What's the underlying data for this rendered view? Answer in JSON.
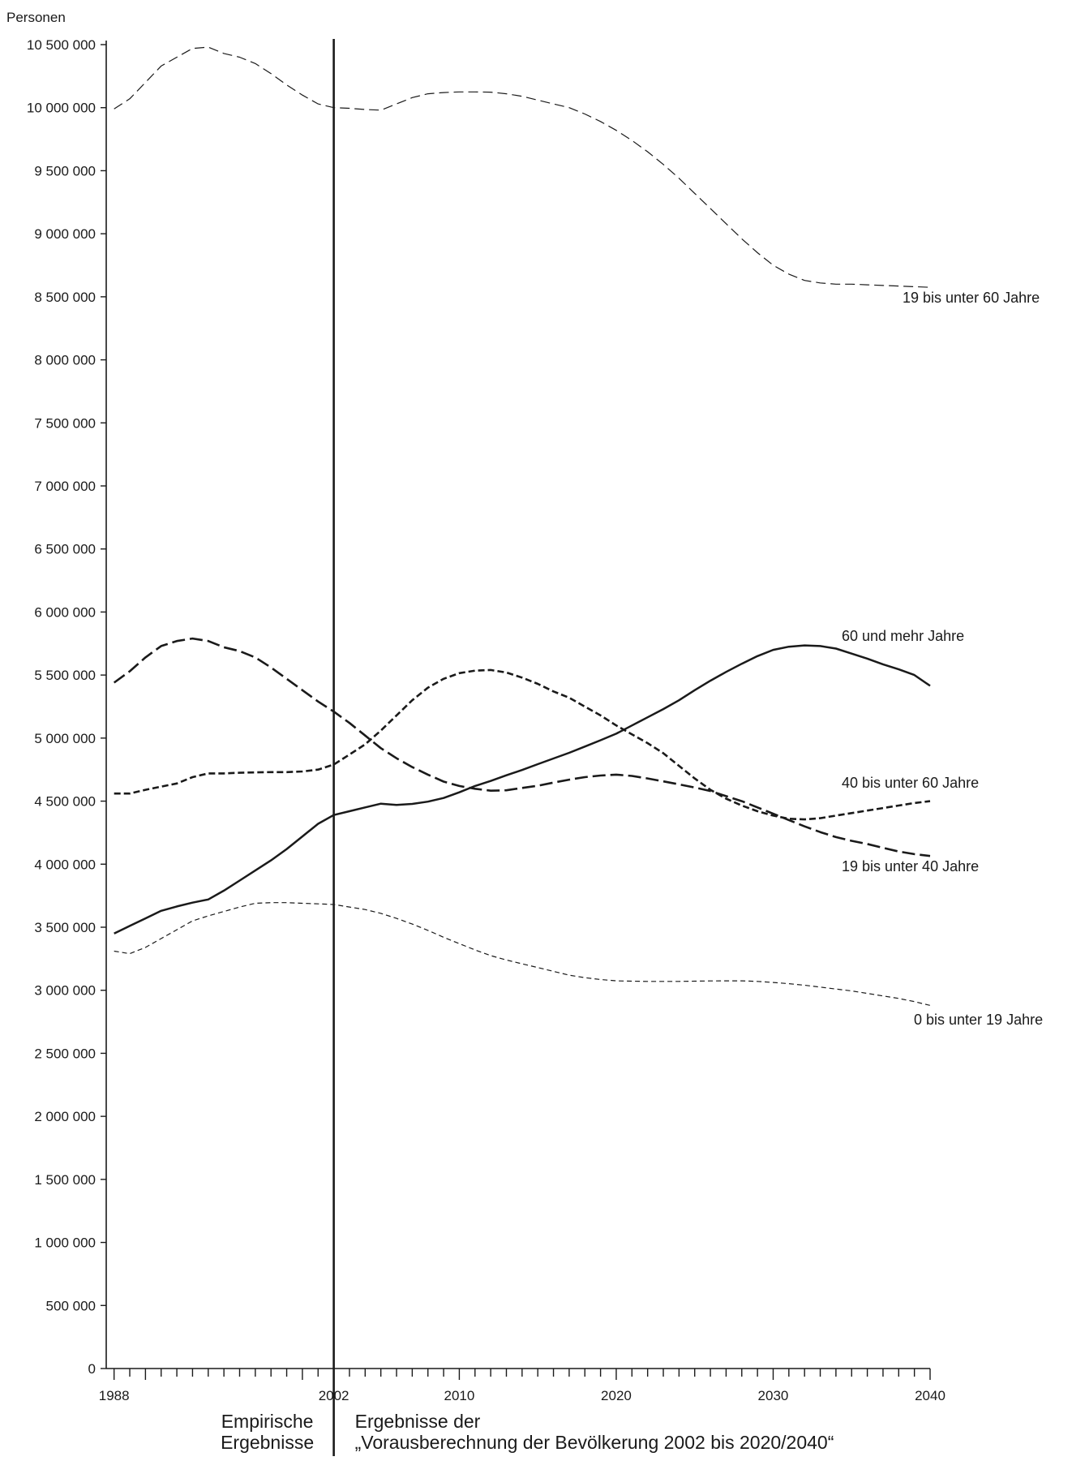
{
  "chart_data": {
    "type": "line",
    "ylabel": "Personen",
    "ylim": [
      0,
      10500000
    ],
    "xlim": [
      1987.5,
      2040
    ],
    "grid": false,
    "y_ticks": [
      0,
      500000,
      1000000,
      1500000,
      2000000,
      2500000,
      3000000,
      3500000,
      4000000,
      4500000,
      5000000,
      5500000,
      6000000,
      6500000,
      7000000,
      7500000,
      8000000,
      8500000,
      9000000,
      9500000,
      10000000,
      10500000
    ],
    "y_tick_labels": [
      "0",
      "500 000",
      "1 000 000",
      "1 500 000",
      "2 000 000",
      "2 500 000",
      "3 000 000",
      "3 500 000",
      "4 000 000",
      "4 500 000",
      "5 000 000",
      "5 500 000",
      "6 000 000",
      "6 500 000",
      "7 000 000",
      "7 500 000",
      "8 000 000",
      "8 500 000",
      "9 000 000",
      "9 500 000",
      "10 000 000",
      "10 500 000"
    ],
    "x_tick_labels": [
      {
        "x": 1988,
        "label": "1988"
      },
      {
        "x": 2002,
        "label": "2002"
      },
      {
        "x": 2010,
        "label": "2010"
      },
      {
        "x": 2020,
        "label": "2020"
      },
      {
        "x": 2030,
        "label": "2030"
      },
      {
        "x": 2040,
        "label": "2040"
      }
    ],
    "divider_year": 2002,
    "divider_caption_left": [
      "Empirische",
      "Ergebnisse"
    ],
    "divider_caption_right": [
      "Ergebnisse der",
      "„Vorausberechnung der Bevölkerung 2002 bis 2020/2040“"
    ],
    "series": [
      {
        "name": "19 bis unter 60 Jahre",
        "style": "long-dash-thin",
        "x": [
          1988,
          1989,
          1990,
          1991,
          1992,
          1993,
          1994,
          1995,
          1996,
          1997,
          1998,
          1999,
          2000,
          2001,
          2002,
          2003,
          2004,
          2005,
          2006,
          2007,
          2008,
          2009,
          2010,
          2011,
          2012,
          2013,
          2014,
          2015,
          2016,
          2017,
          2018,
          2019,
          2020,
          2021,
          2022,
          2023,
          2024,
          2025,
          2026,
          2027,
          2028,
          2029,
          2030,
          2031,
          2032,
          2033,
          2034,
          2035,
          2036,
          2037,
          2038,
          2039,
          2040
        ],
        "values": [
          9990000,
          10070000,
          10200000,
          10330000,
          10400000,
          10470000,
          10480000,
          10430000,
          10400000,
          10350000,
          10270000,
          10180000,
          10100000,
          10030000,
          10000000,
          9995000,
          9985000,
          9980000,
          10030000,
          10080000,
          10110000,
          10120000,
          10125000,
          10125000,
          10123000,
          10110000,
          10090000,
          10060000,
          10030000,
          10000000,
          9950000,
          9890000,
          9820000,
          9740000,
          9650000,
          9550000,
          9440000,
          9320000,
          9200000,
          9080000,
          8960000,
          8850000,
          8750000,
          8680000,
          8630000,
          8610000,
          8600000,
          8600000,
          8595000,
          8590000,
          8585000,
          8580000,
          8575000
        ]
      },
      {
        "name": "60 und mehr Jahre",
        "style": "solid",
        "x": [
          1988,
          1989,
          1990,
          1991,
          1992,
          1993,
          1994,
          1995,
          1996,
          1997,
          1998,
          1999,
          2000,
          2001,
          2002,
          2003,
          2004,
          2005,
          2006,
          2007,
          2008,
          2009,
          2010,
          2011,
          2012,
          2013,
          2014,
          2015,
          2016,
          2017,
          2018,
          2019,
          2020,
          2021,
          2022,
          2023,
          2024,
          2025,
          2026,
          2027,
          2028,
          2029,
          2030,
          2031,
          2032,
          2033,
          2034,
          2035,
          2036,
          2037,
          2038,
          2039,
          2040
        ],
        "values": [
          3450000,
          3510000,
          3570000,
          3630000,
          3665000,
          3695000,
          3720000,
          3790000,
          3870000,
          3950000,
          4030000,
          4120000,
          4220000,
          4320000,
          4390000,
          4420000,
          4450000,
          4480000,
          4470000,
          4478000,
          4496000,
          4525000,
          4570000,
          4620000,
          4660000,
          4705000,
          4747000,
          4793000,
          4838000,
          4883000,
          4933000,
          4983000,
          5035000,
          5100000,
          5165000,
          5230000,
          5300000,
          5380000,
          5455000,
          5525000,
          5590000,
          5650000,
          5700000,
          5725000,
          5735000,
          5730000,
          5710000,
          5670000,
          5630000,
          5585000,
          5545000,
          5500000,
          5415000
        ]
      },
      {
        "name": "40 bis unter 60 Jahre",
        "style": "short-dash-thick",
        "x": [
          1988,
          1989,
          1990,
          1991,
          1992,
          1993,
          1994,
          1995,
          1996,
          1997,
          1998,
          1999,
          2000,
          2001,
          2002,
          2003,
          2004,
          2005,
          2006,
          2007,
          2008,
          2009,
          2010,
          2011,
          2012,
          2013,
          2014,
          2015,
          2016,
          2017,
          2018,
          2019,
          2020,
          2021,
          2022,
          2023,
          2024,
          2025,
          2026,
          2027,
          2028,
          2029,
          2030,
          2031,
          2032,
          2033,
          2034,
          2035,
          2036,
          2037,
          2038,
          2039,
          2040
        ],
        "values": [
          4560000,
          4560000,
          4590000,
          4615000,
          4640000,
          4690000,
          4720000,
          4720000,
          4725000,
          4728000,
          4730000,
          4730000,
          4735000,
          4750000,
          4790000,
          4870000,
          4950000,
          5060000,
          5180000,
          5300000,
          5400000,
          5470000,
          5515000,
          5535000,
          5540000,
          5520000,
          5480000,
          5430000,
          5370000,
          5320000,
          5250000,
          5180000,
          5100000,
          5030000,
          4960000,
          4880000,
          4780000,
          4680000,
          4590000,
          4520000,
          4465000,
          4420000,
          4385000,
          4360000,
          4355000,
          4365000,
          4385000,
          4405000,
          4425000,
          4445000,
          4465000,
          4485000,
          4500000
        ]
      },
      {
        "name": "19 bis unter 40 Jahre",
        "style": "long-dash-thick",
        "x": [
          1988,
          1989,
          1990,
          1991,
          1992,
          1993,
          1994,
          1995,
          1996,
          1997,
          1998,
          1999,
          2000,
          2001,
          2002,
          2003,
          2004,
          2005,
          2006,
          2007,
          2008,
          2009,
          2010,
          2011,
          2012,
          2013,
          2014,
          2015,
          2016,
          2017,
          2018,
          2019,
          2020,
          2021,
          2022,
          2023,
          2024,
          2025,
          2026,
          2027,
          2028,
          2029,
          2030,
          2031,
          2032,
          2033,
          2034,
          2035,
          2036,
          2037,
          2038,
          2039,
          2040
        ],
        "values": [
          5440000,
          5530000,
          5640000,
          5730000,
          5770000,
          5790000,
          5770000,
          5720000,
          5690000,
          5640000,
          5560000,
          5470000,
          5380000,
          5290000,
          5210000,
          5120000,
          5020000,
          4920000,
          4840000,
          4770000,
          4710000,
          4655000,
          4620000,
          4598000,
          4583000,
          4586000,
          4605000,
          4622000,
          4647000,
          4670000,
          4690000,
          4703000,
          4710000,
          4700000,
          4680000,
          4657000,
          4633000,
          4608000,
          4580000,
          4540000,
          4500000,
          4450000,
          4400000,
          4350000,
          4300000,
          4255000,
          4215000,
          4185000,
          4160000,
          4130000,
          4100000,
          4080000,
          4065000
        ]
      },
      {
        "name": "0 bis unter 19 Jahre",
        "style": "short-dash-thin",
        "x": [
          1988,
          1989,
          1990,
          1991,
          1992,
          1993,
          1994,
          1995,
          1996,
          1997,
          1998,
          1999,
          2000,
          2001,
          2002,
          2003,
          2004,
          2005,
          2006,
          2007,
          2008,
          2009,
          2010,
          2011,
          2012,
          2013,
          2014,
          2015,
          2016,
          2017,
          2018,
          2019,
          2020,
          2021,
          2022,
          2023,
          2024,
          2025,
          2026,
          2027,
          2028,
          2029,
          2030,
          2031,
          2032,
          2033,
          2034,
          2035,
          2036,
          2037,
          2038,
          2039,
          2040
        ],
        "values": [
          3310000,
          3290000,
          3340000,
          3410000,
          3480000,
          3550000,
          3590000,
          3625000,
          3660000,
          3690000,
          3695000,
          3695000,
          3690000,
          3685000,
          3680000,
          3660000,
          3640000,
          3610000,
          3570000,
          3525000,
          3475000,
          3420000,
          3370000,
          3320000,
          3275000,
          3240000,
          3210000,
          3180000,
          3150000,
          3120000,
          3100000,
          3085000,
          3075000,
          3072000,
          3070000,
          3070000,
          3070000,
          3072000,
          3074000,
          3075000,
          3075000,
          3070000,
          3062000,
          3052000,
          3040000,
          3025000,
          3010000,
          2995000,
          2975000,
          2955000,
          2935000,
          2910000,
          2880000
        ]
      }
    ]
  }
}
